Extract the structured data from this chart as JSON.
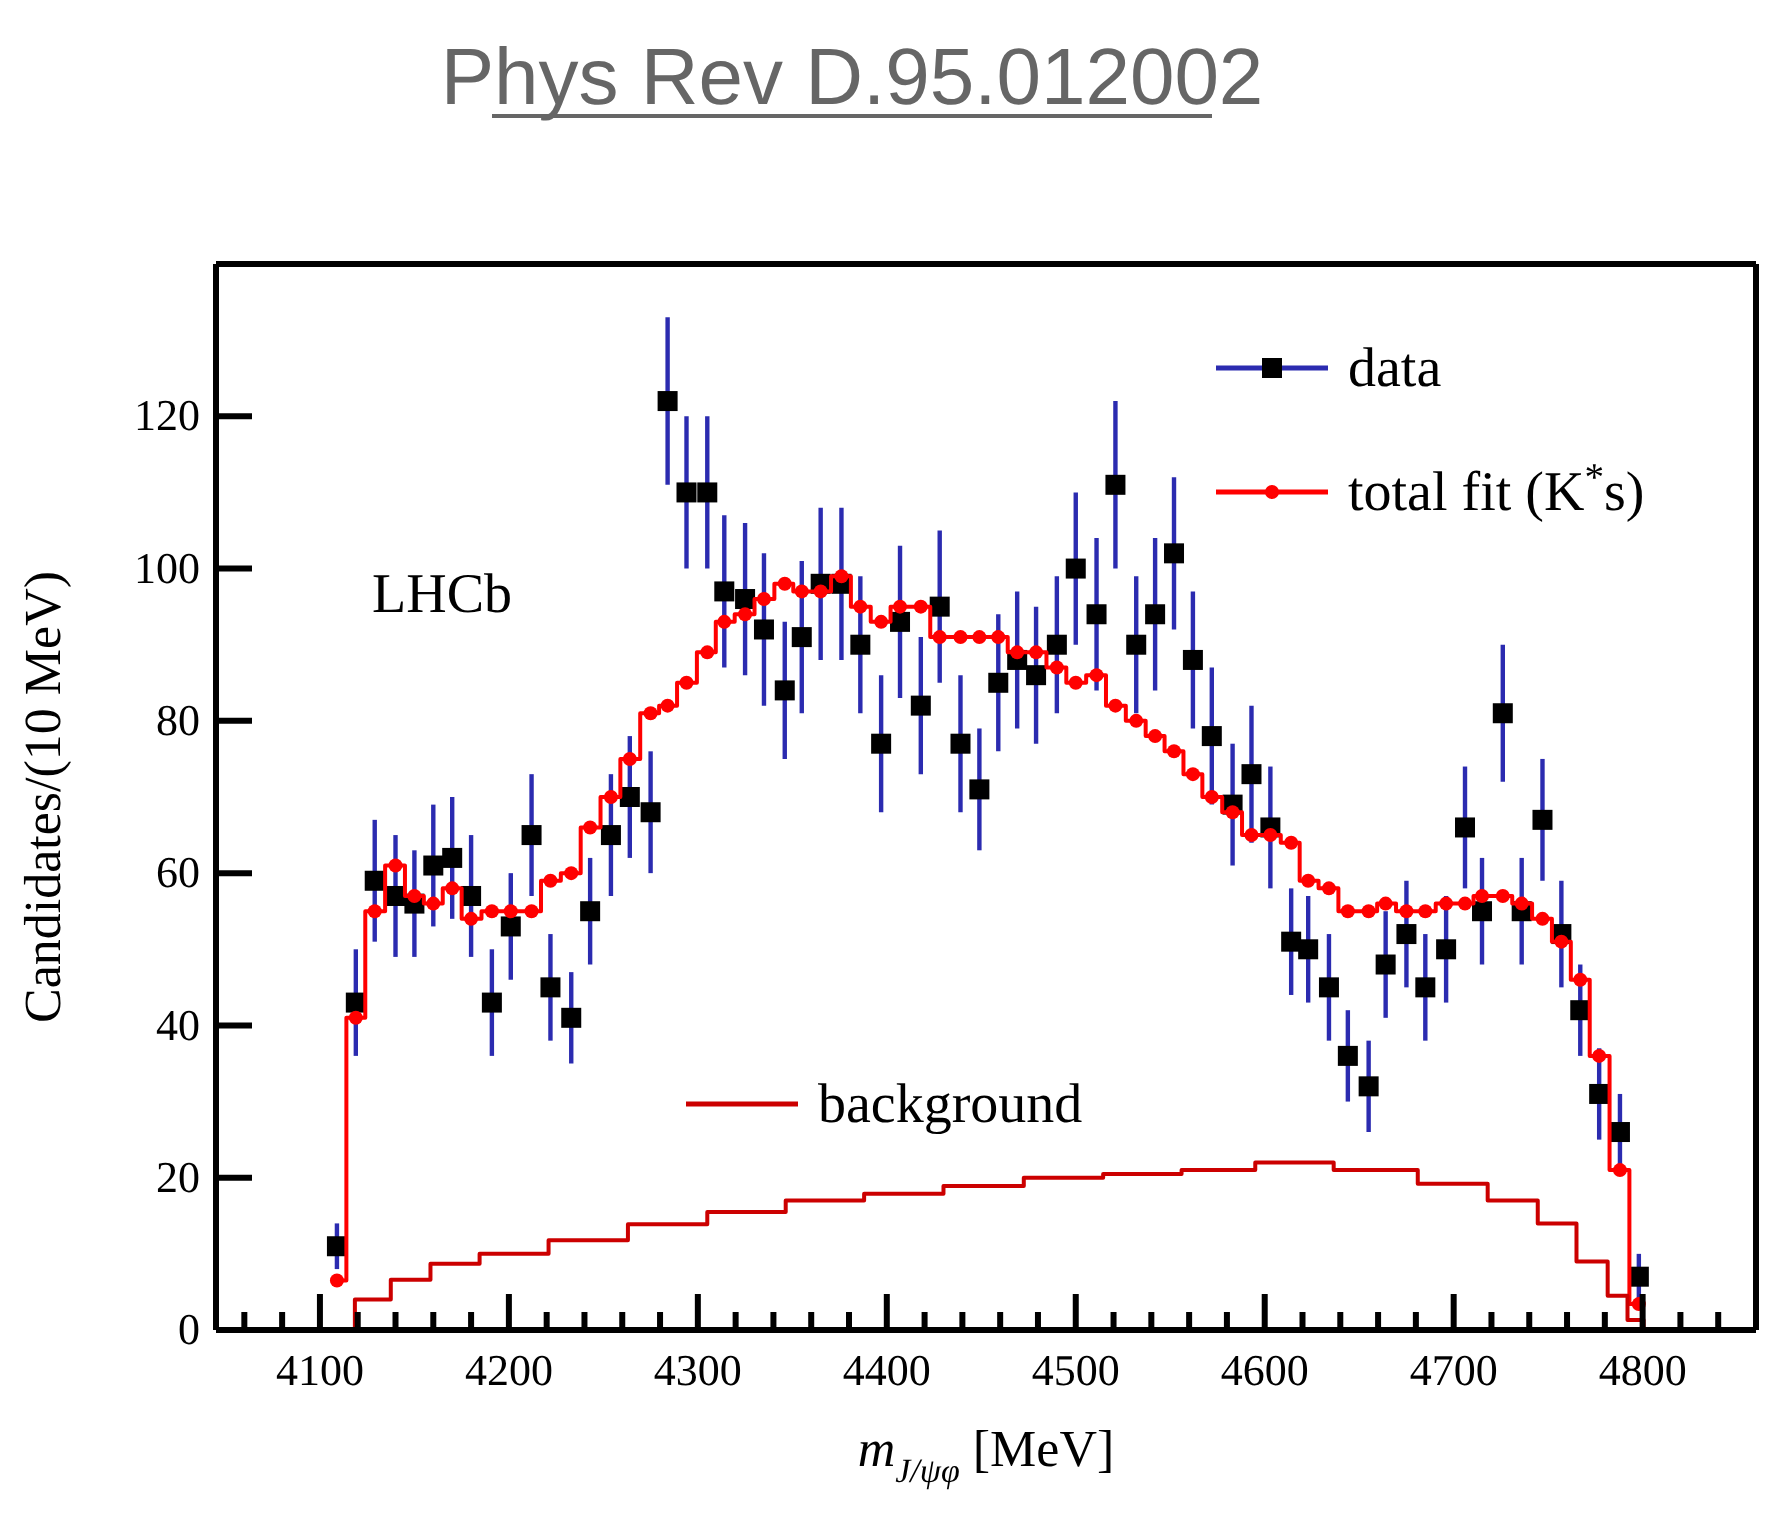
{
  "chart_data": {
    "type": "scatter",
    "title": "Phys Rev D.95.012002",
    "xlabel": "m$_{J/ψφ}$ [MeV]",
    "ylabel": "Candidates/(10 MeV)",
    "annotations": [
      "LHCb"
    ],
    "x": [
      4109,
      4119,
      4129,
      4140,
      4150,
      4160,
      4170,
      4180,
      4191,
      4201,
      4212,
      4222,
      4233,
      4243,
      4254,
      4264,
      4275,
      4284,
      4294,
      4305,
      4314,
      4325,
      4335,
      4346,
      4355,
      4365,
      4376,
      4386,
      4397,
      4407,
      4418,
      4428,
      4439,
      4449,
      4459,
      4469,
      4479,
      4490,
      4500,
      4511,
      4521,
      4532,
      4542,
      4552,
      4562,
      4572,
      4583,
      4593,
      4603,
      4614,
      4623,
      4634,
      4644,
      4655,
      4664,
      4675,
      4685,
      4696,
      4706,
      4715,
      4726,
      4736,
      4747,
      4757,
      4767,
      4777,
      4788,
      4798
    ],
    "series": [
      {
        "name": "data",
        "marker": "square",
        "color": "#000000",
        "values": [
          11,
          43,
          59,
          57,
          56,
          61,
          62,
          57,
          43,
          53,
          65,
          45,
          41,
          55,
          65,
          70,
          68,
          122,
          110,
          110,
          97,
          96,
          92,
          84,
          91,
          98,
          98,
          90,
          77,
          93,
          82,
          95,
          77,
          71,
          85,
          88,
          86,
          90,
          100,
          94,
          111,
          90,
          94,
          102,
          88,
          78,
          69,
          73,
          66,
          51,
          50,
          45,
          36,
          32,
          48,
          52,
          45,
          50,
          66,
          55,
          81,
          55,
          67,
          52,
          42,
          31,
          26,
          7
        ],
        "errors": [
          3,
          7,
          8,
          8,
          7,
          8,
          8,
          8,
          7,
          7,
          8,
          7,
          6,
          7,
          8,
          8,
          8,
          11,
          10,
          10,
          10,
          10,
          10,
          9,
          10,
          10,
          10,
          9,
          9,
          10,
          9,
          10,
          9,
          8,
          9,
          9,
          9,
          9,
          10,
          10,
          11,
          9,
          10,
          10,
          9,
          9,
          8,
          9,
          8,
          7,
          7,
          7,
          6,
          6,
          7,
          7,
          7,
          7,
          8,
          7,
          9,
          7,
          8,
          7,
          6,
          6,
          5,
          3
        ]
      },
      {
        "name": "total fit (K$^{*}$s)",
        "type": "step",
        "marker": "circle",
        "color": "#ff0000",
        "values": [
          6.5,
          41,
          55,
          61,
          57,
          56,
          58,
          54,
          55,
          55,
          55,
          59,
          60,
          66,
          70,
          75,
          81,
          82,
          85,
          89,
          93,
          94,
          96,
          98,
          97,
          97,
          99,
          95,
          93,
          95,
          95,
          91,
          91,
          91,
          91,
          89,
          89,
          87,
          85,
          86,
          82,
          80,
          78,
          76,
          73,
          70,
          68,
          65,
          65,
          64,
          59,
          58,
          55,
          55,
          56,
          55,
          55,
          56,
          56,
          57,
          57,
          56,
          54,
          51,
          46,
          36,
          21,
          3.4
        ]
      },
      {
        "name": "background",
        "type": "step",
        "marker": "none",
        "color": "#cc0000",
        "x": [
          4045,
          4110,
          4127,
          4148,
          4169,
          4200,
          4242,
          4284,
          4326,
          4367,
          4409,
          4451,
          4494,
          4535,
          4577,
          4613,
          4660,
          4702,
          4734,
          4755,
          4775,
          4788,
          4796,
          4805,
          4860
        ],
        "values": [
          0,
          0,
          4,
          6.6,
          8.7,
          10,
          11.8,
          13.9,
          15.5,
          17,
          17.9,
          18.9,
          20,
          20.5,
          21,
          22,
          21,
          19.2,
          17,
          14,
          9,
          4.5,
          1.3,
          0,
          0
        ]
      }
    ],
    "xlim": [
      4045,
      4860
    ],
    "xticks": [
      4100,
      4200,
      4300,
      4400,
      4500,
      4600,
      4700,
      4800
    ],
    "ylim": [
      0,
      140
    ],
    "yticks": [
      0,
      20,
      40,
      60,
      80,
      100,
      120
    ],
    "grid": false,
    "legend": "top right",
    "line_style": "solid"
  }
}
